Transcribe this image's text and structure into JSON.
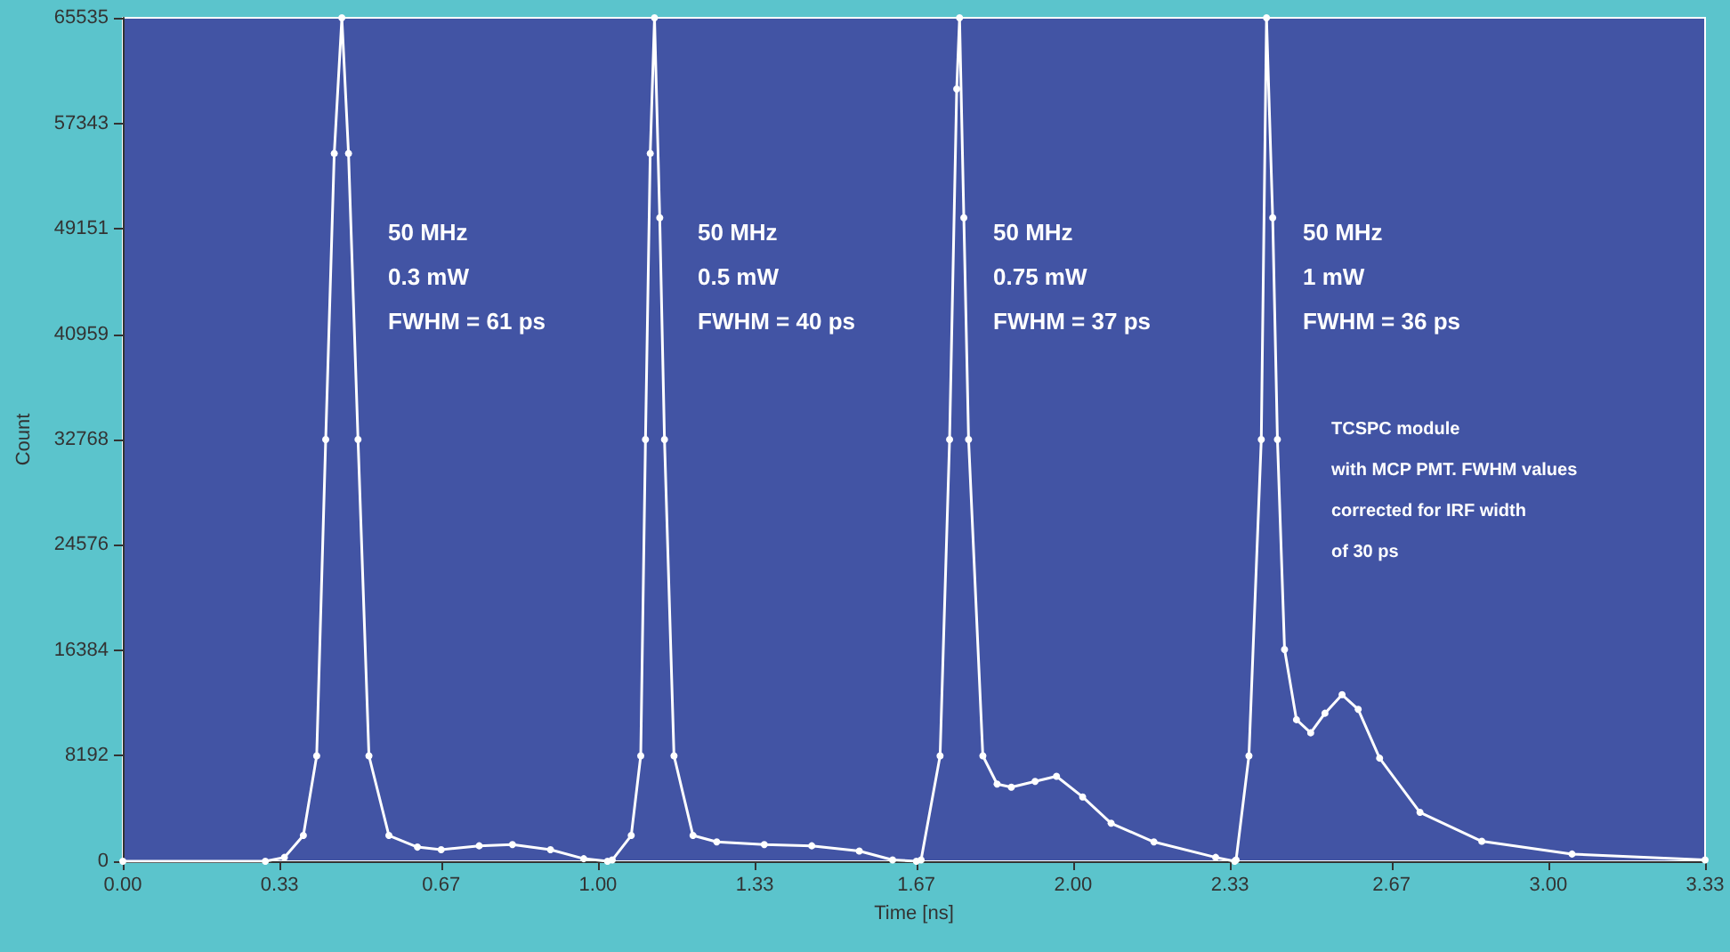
{
  "chart_data": {
    "type": "line",
    "xlabel": "Time [ns]",
    "ylabel": "Count",
    "xlim": [
      0,
      3.33
    ],
    "xticks": [
      {
        "value": 0,
        "label": "0.00"
      },
      0.33,
      0.67,
      {
        "value": 1,
        "label": "1.00"
      },
      1.33,
      1.67,
      {
        "value": 2,
        "label": "2.00"
      },
      2.33,
      2.67,
      {
        "value": 3,
        "label": "3.00"
      },
      3.33
    ],
    "ylim": [
      0,
      65535
    ],
    "yticks": [
      0,
      8192,
      16384,
      24576,
      32768,
      40959,
      49151,
      57343,
      65535
    ],
    "grid": false,
    "marker": "circle",
    "line_style": "solid",
    "series": [
      {
        "color": "#ffffff",
        "x": [
          0,
          0.3,
          0.34,
          0.38,
          0.408,
          0.427,
          0.445,
          0.461,
          0.475,
          0.495,
          0.518,
          0.56,
          0.62,
          0.67,
          0.75,
          0.82,
          0.9,
          0.97,
          1.02,
          1.03,
          1.07,
          1.09,
          1.1,
          1.11,
          1.119,
          1.13,
          1.14,
          1.16,
          1.2,
          1.25,
          1.35,
          1.45,
          1.55,
          1.62,
          1.67,
          1.68,
          1.72,
          1.74,
          1.755,
          1.761,
          1.77,
          1.78,
          1.81,
          1.84,
          1.87,
          1.92,
          1.965,
          2.02,
          2.08,
          2.17,
          2.3,
          2.34,
          2.343,
          2.37,
          2.396,
          2.407,
          2.42,
          2.43,
          2.445,
          2.47,
          2.5,
          2.53,
          2.566,
          2.6,
          2.645,
          2.73,
          2.86,
          3.05,
          3.33
        ],
        "values": [
          0,
          0,
          300,
          2000,
          8192,
          32768,
          55000,
          65535,
          55000,
          32768,
          8192,
          2000,
          1100,
          900,
          1200,
          1300,
          900,
          200,
          0,
          100,
          2000,
          8192,
          32768,
          55000,
          65535,
          50000,
          32768,
          8192,
          2000,
          1500,
          1300,
          1200,
          800,
          100,
          0,
          100,
          8192,
          32768,
          60000,
          65535,
          50000,
          32768,
          8192,
          6000,
          5760,
          6200,
          6600,
          5000,
          2950,
          1500,
          300,
          0,
          100,
          8192,
          32768,
          65535,
          50000,
          32768,
          16450,
          11000,
          9980,
          11500,
          12940,
          11800,
          8010,
          3800,
          1550,
          560,
          100
        ]
      }
    ],
    "annotations": [
      "50 MHz\n0.3 mW\nFWHM = 61 ps",
      "50 MHz\n0.5 mW\nFWHM = 40 ps",
      "50 MHz\n0.75 mW\nFWHM = 37 ps",
      "50 MHz\n1 mW\nFWHM = 36 ps",
      "TCSPC module\nwith MCP PMT. FWHM values\ncorrected for IRF width\nof 30 ps"
    ]
  }
}
